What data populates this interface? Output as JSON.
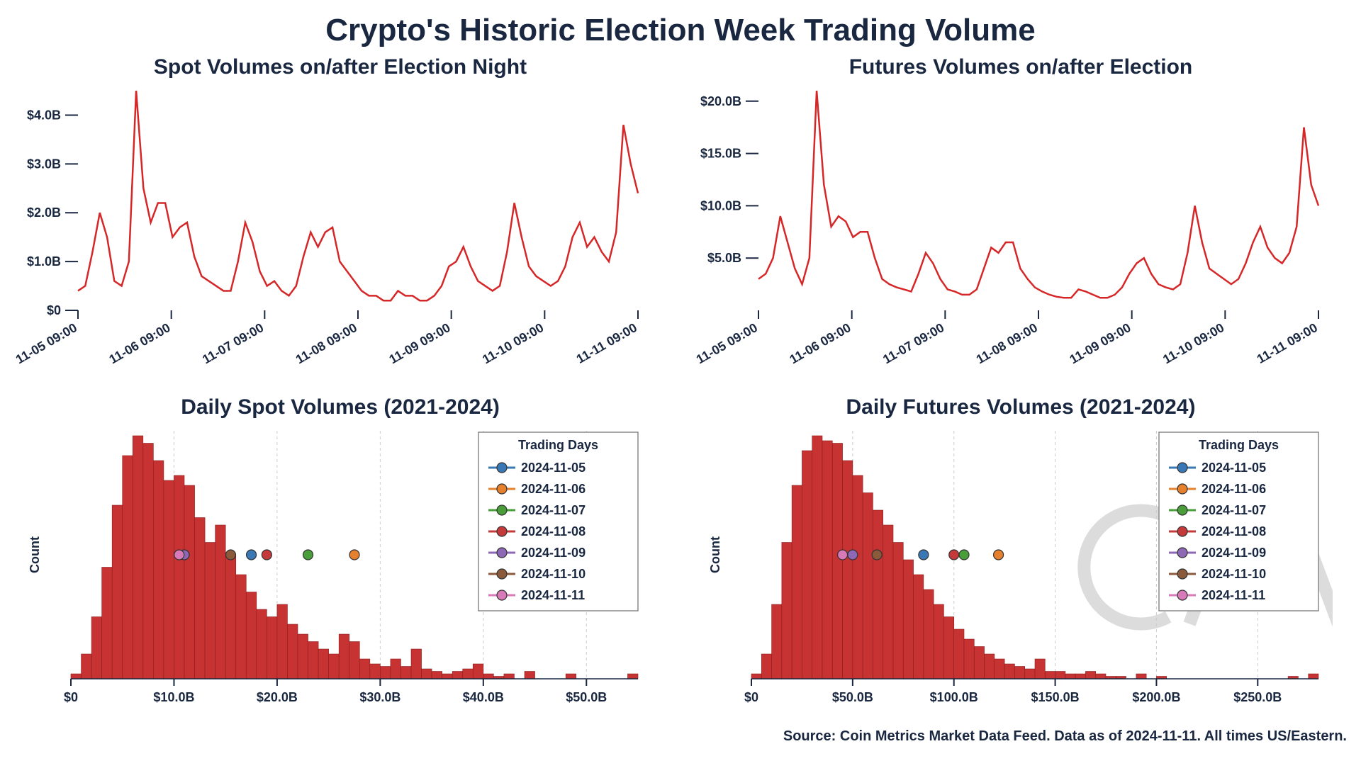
{
  "main_title": "Crypto's Historic Election Week Trading Volume",
  "source": "Source: Coin Metrics Market Data Feed. Data as of 2024-11-11. All times US/Eastern.",
  "colors": {
    "line": "#d62728",
    "bar_fill": "#c73232",
    "bar_stroke": "#8a1f1f",
    "axis": "#1a2740",
    "bg": "#ffffff",
    "grid": "#cccccc"
  },
  "legend": {
    "title": "Trading Days",
    "items": [
      {
        "label": "2024-11-05",
        "color": "#3a78b5"
      },
      {
        "label": "2024-11-06",
        "color": "#e5802e"
      },
      {
        "label": "2024-11-07",
        "color": "#4a9e3a"
      },
      {
        "label": "2024-11-08",
        "color": "#c43a3a"
      },
      {
        "label": "2024-11-09",
        "color": "#8c68b5"
      },
      {
        "label": "2024-11-10",
        "color": "#8a5a3a"
      },
      {
        "label": "2024-11-11",
        "color": "#d87ab8"
      }
    ]
  },
  "spot_line": {
    "title": "Spot Volumes on/after Election Night",
    "type": "line",
    "line_color": "#d62728",
    "line_width": 2.5,
    "ylim": [
      0,
      4.5
    ],
    "yticks": [
      0,
      1,
      2,
      3,
      4
    ],
    "ytick_labels": [
      "$0",
      "$1.0B",
      "$2.0B",
      "$3.0B",
      "$4.0B"
    ],
    "xticks": [
      "11-05 09:00",
      "11-06 09:00",
      "11-07 09:00",
      "11-08 09:00",
      "11-09 09:00",
      "11-10 09:00",
      "11-11 09:00"
    ],
    "y_series": [
      0.4,
      0.5,
      1.2,
      2.0,
      1.5,
      0.6,
      0.5,
      1.0,
      4.5,
      2.5,
      1.8,
      2.2,
      2.2,
      1.5,
      1.7,
      1.8,
      1.1,
      0.7,
      0.6,
      0.5,
      0.4,
      0.4,
      1.0,
      1.8,
      1.4,
      0.8,
      0.5,
      0.6,
      0.4,
      0.3,
      0.5,
      1.1,
      1.6,
      1.3,
      1.6,
      1.7,
      1.0,
      0.8,
      0.6,
      0.4,
      0.3,
      0.3,
      0.2,
      0.2,
      0.4,
      0.3,
      0.3,
      0.2,
      0.2,
      0.3,
      0.5,
      0.9,
      1.0,
      1.3,
      0.9,
      0.6,
      0.5,
      0.4,
      0.5,
      1.2,
      2.2,
      1.5,
      0.9,
      0.7,
      0.6,
      0.5,
      0.6,
      0.9,
      1.5,
      1.8,
      1.3,
      1.5,
      1.2,
      1.0,
      1.6,
      3.8,
      3.0,
      2.4
    ]
  },
  "futures_line": {
    "title": "Futures Volumes on/after Election",
    "type": "line",
    "line_color": "#d62728",
    "line_width": 2.5,
    "ylim": [
      0,
      21
    ],
    "yticks": [
      5,
      10,
      15,
      20
    ],
    "ytick_labels": [
      "$5.0B",
      "$10.0B",
      "$15.0B",
      "$20.0B"
    ],
    "xticks": [
      "11-05 09:00",
      "11-06 09:00",
      "11-07 09:00",
      "11-08 09:00",
      "11-09 09:00",
      "11-10 09:00",
      "11-11 09:00"
    ],
    "y_series": [
      3.0,
      3.5,
      5.0,
      9.0,
      6.5,
      4.0,
      2.5,
      5.0,
      21.0,
      12.0,
      8.0,
      9.0,
      8.5,
      7.0,
      7.5,
      7.5,
      5.0,
      3.0,
      2.5,
      2.2,
      2.0,
      1.8,
      3.5,
      5.5,
      4.5,
      3.0,
      2.0,
      1.8,
      1.5,
      1.5,
      2.0,
      4.0,
      6.0,
      5.5,
      6.5,
      6.5,
      4.0,
      3.0,
      2.2,
      1.8,
      1.5,
      1.3,
      1.2,
      1.2,
      2.0,
      1.8,
      1.5,
      1.2,
      1.2,
      1.5,
      2.2,
      3.5,
      4.5,
      5.0,
      3.5,
      2.5,
      2.2,
      2.0,
      2.5,
      5.5,
      10.0,
      6.5,
      4.0,
      3.5,
      3.0,
      2.5,
      3.0,
      4.5,
      6.5,
      8.0,
      6.0,
      5.0,
      4.5,
      5.5,
      8.0,
      17.5,
      12.0,
      10.0
    ]
  },
  "spot_hist": {
    "title": "Daily Spot Volumes (2021-2024)",
    "type": "histogram",
    "xlim": [
      0,
      55
    ],
    "xticks": [
      0,
      10,
      20,
      30,
      40,
      50
    ],
    "xtick_labels": [
      "$0",
      "$10.0B",
      "$20.0B",
      "$30.0B",
      "$40.0B",
      "$50.0B"
    ],
    "ylabel": "Count",
    "bar_color": "#c73232",
    "bin_width": 1.0,
    "ylim_count": [
      0,
      100
    ],
    "counts": [
      2,
      10,
      25,
      45,
      70,
      90,
      98,
      95,
      88,
      80,
      82,
      78,
      65,
      55,
      62,
      50,
      42,
      35,
      28,
      25,
      30,
      22,
      18,
      15,
      12,
      10,
      18,
      15,
      8,
      6,
      5,
      8,
      5,
      12,
      4,
      3,
      2,
      3,
      4,
      6,
      2,
      1,
      2,
      0,
      3,
      0,
      0,
      0,
      2,
      0,
      0,
      0,
      0,
      0,
      2
    ],
    "grid_x": [
      10,
      20,
      30,
      40,
      50
    ],
    "markers_y": 50,
    "markers": [
      {
        "x": 17.5,
        "color": "#3a78b5"
      },
      {
        "x": 27.5,
        "color": "#e5802e"
      },
      {
        "x": 23.0,
        "color": "#4a9e3a"
      },
      {
        "x": 19.0,
        "color": "#c43a3a"
      },
      {
        "x": 11.0,
        "color": "#8c68b5"
      },
      {
        "x": 15.5,
        "color": "#8a5a3a"
      },
      {
        "x": 10.5,
        "color": "#d87ab8"
      }
    ]
  },
  "futures_hist": {
    "title": "Daily Futures Volumes (2021-2024)",
    "type": "histogram",
    "xlim": [
      0,
      280
    ],
    "xticks": [
      0,
      50,
      100,
      150,
      200,
      250
    ],
    "xtick_labels": [
      "$0",
      "$50.0B",
      "$100.0B",
      "$150.0B",
      "$200.0B",
      "$250.0B"
    ],
    "ylabel": "Count",
    "bar_color": "#c73232",
    "bin_width": 5.0,
    "ylim_count": [
      0,
      100
    ],
    "counts": [
      2,
      10,
      30,
      55,
      78,
      92,
      98,
      96,
      95,
      88,
      82,
      75,
      68,
      62,
      55,
      48,
      42,
      36,
      30,
      25,
      20,
      16,
      13,
      10,
      8,
      6,
      5,
      4,
      8,
      3,
      3,
      2,
      2,
      3,
      2,
      1,
      1,
      0,
      2,
      0,
      1,
      0,
      0,
      0,
      0,
      0,
      0,
      0,
      0,
      0,
      0,
      0,
      0,
      1,
      0,
      2
    ],
    "grid_x": [
      50,
      100,
      150,
      200,
      250
    ],
    "markers_y": 50,
    "markers": [
      {
        "x": 85,
        "color": "#3a78b5"
      },
      {
        "x": 122,
        "color": "#e5802e"
      },
      {
        "x": 105,
        "color": "#4a9e3a"
      },
      {
        "x": 100,
        "color": "#c43a3a"
      },
      {
        "x": 50,
        "color": "#8c68b5"
      },
      {
        "x": 62,
        "color": "#8a5a3a"
      },
      {
        "x": 45,
        "color": "#d87ab8"
      }
    ]
  }
}
